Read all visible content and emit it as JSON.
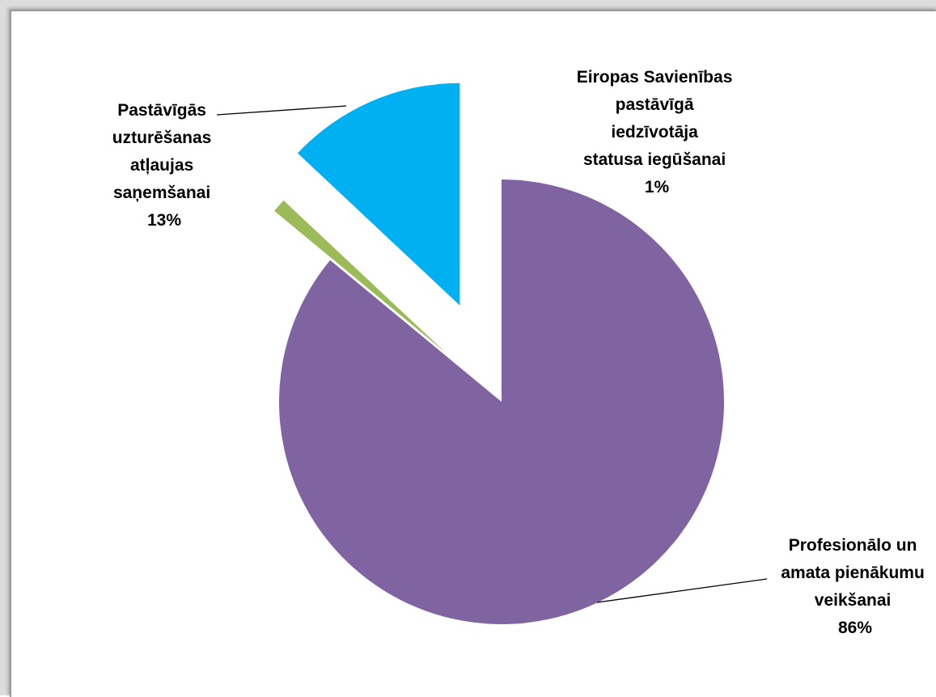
{
  "chart_data": {
    "type": "pie",
    "title": "",
    "exploded": true,
    "slices": [
      {
        "label": "Profesionālo un amata pienākumu veikšanai",
        "label_lines": [
          "Profesionālo un",
          "amata pienākumu",
          "veikšanai"
        ],
        "value": 86,
        "value_label": "86%",
        "color": "#8064A2"
      },
      {
        "label": "Eiropas Savienības pastāvīgā iedzīvotāja statusa iegūšanai",
        "label_lines": [
          "Eiropas Savienības",
          "pastāvīgā",
          "iedzīvotāja",
          "statusa iegūšanai"
        ],
        "value": 1,
        "value_label": "1%",
        "color": "#9BBB59"
      },
      {
        "label": "Pastāvīgās uzturēšanas atļaujas saņemšanai",
        "label_lines": [
          "Pastāvīgās",
          "uzturēšanas",
          "atļaujas",
          "saņemšanai"
        ],
        "value": 13,
        "value_label": "13%",
        "color": "#00B0F0"
      }
    ]
  }
}
